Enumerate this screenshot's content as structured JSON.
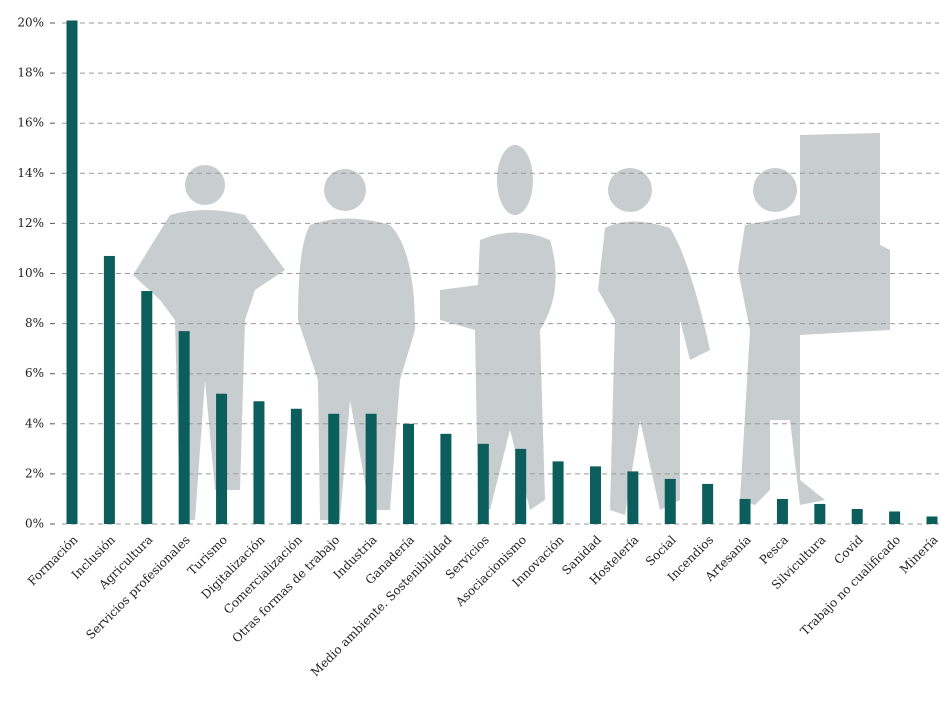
{
  "chart_data": {
    "type": "bar",
    "categories": [
      "Formación",
      "Inclusión",
      "Agricultura",
      "Servicios profesionales",
      "Turismo",
      "Digitalización",
      "Comercialización",
      "Otras formas de trabajo",
      "Industria",
      "Ganadería",
      "Medio ambiente. Sostenibilidad",
      "Servicios",
      "Asociacionismo",
      "Innovación",
      "Sanidad",
      "Hostelería",
      "Social",
      "Incendios",
      "Artesanía",
      "Pesca",
      "Silvicultura",
      "Covid",
      "Trabajo no cualificado",
      "Minería"
    ],
    "values": [
      20.1,
      10.7,
      9.3,
      7.7,
      5.2,
      4.9,
      4.6,
      4.4,
      4.4,
      4.0,
      3.6,
      3.2,
      3.0,
      2.5,
      2.3,
      2.1,
      1.8,
      1.6,
      1.0,
      1.0,
      0.8,
      0.6,
      0.5,
      0.3
    ],
    "color": "#0b5e5b",
    "ylim": [
      0,
      20
    ],
    "yticks": [
      {
        "value": 0,
        "label": "0%"
      },
      {
        "value": 2,
        "label": "2%"
      },
      {
        "value": 4,
        "label": "4%"
      },
      {
        "value": 6,
        "label": "6%"
      },
      {
        "value": 8,
        "label": "8%"
      },
      {
        "value": 10,
        "label": "10%"
      },
      {
        "value": 12,
        "label": "12%"
      },
      {
        "value": 14,
        "label": "14%"
      },
      {
        "value": 16,
        "label": "16%"
      },
      {
        "value": 18,
        "label": "18%"
      },
      {
        "value": 20,
        "label": "20%"
      }
    ],
    "grid": true
  }
}
